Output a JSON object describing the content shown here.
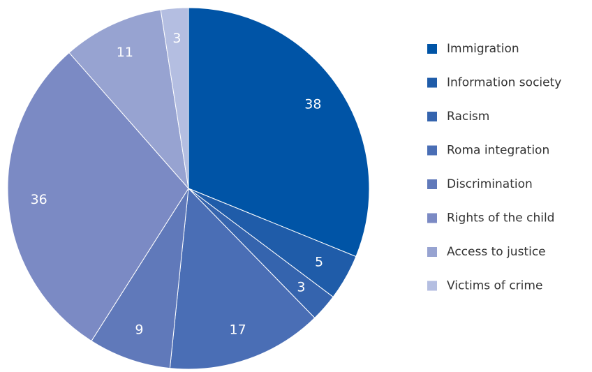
{
  "chart_data": {
    "type": "pie",
    "categories": [
      "Immigration",
      "Information society",
      "Racism",
      "Roma integration",
      "Discrimination",
      "Rights of the child",
      "Access to justice",
      "Victims of crime"
    ],
    "values": [
      38,
      5,
      3,
      17,
      9,
      36,
      11,
      3
    ],
    "colors": [
      "#0054a6",
      "#1f5ca9",
      "#3564ae",
      "#4a6eb5",
      "#6079ba",
      "#7b8ac4",
      "#97a3d1",
      "#b4bee1"
    ],
    "legend": "right"
  }
}
